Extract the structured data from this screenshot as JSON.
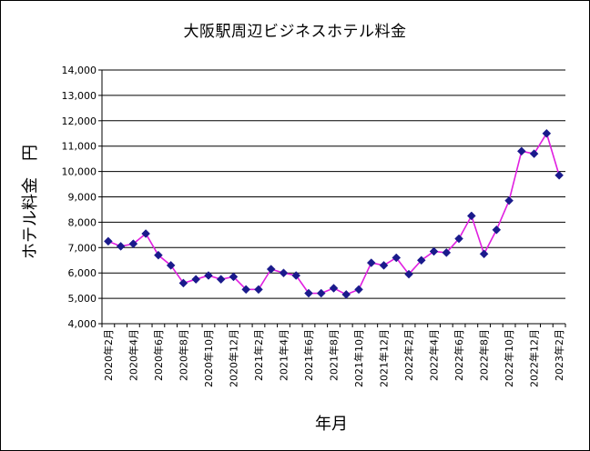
{
  "chart_data": {
    "type": "line",
    "title": "大阪駅周辺ビジネスホテル料金",
    "xlabel": "年月",
    "ylabel": "ホテル料金　円",
    "ylim": [
      4000,
      14000
    ],
    "ytick_step": 1000,
    "yticks": [
      "4,000",
      "5,000",
      "6,000",
      "7,000",
      "8,000",
      "9,000",
      "10,000",
      "11,000",
      "12,000",
      "13,000",
      "14,000"
    ],
    "xtick_labels": [
      "2020年2月",
      "2020年4月",
      "2020年6月",
      "2020年8月",
      "2020年10月",
      "2020年12月",
      "2021年2月",
      "2021年4月",
      "2021年6月",
      "2021年8月",
      "2021年10月",
      "2021年12月",
      "2022年2月",
      "2022年4月",
      "2022年6月",
      "2022年8月",
      "2022年10月",
      "2022年12月",
      "2023年2月"
    ],
    "grid": true,
    "series": [
      {
        "name": "ホテル料金",
        "line_color": "#e020e0",
        "marker_color": "#1a1a8c",
        "x": [
          "2020-02",
          "2020-03",
          "2020-04",
          "2020-05",
          "2020-06",
          "2020-07",
          "2020-08",
          "2020-09",
          "2020-10",
          "2020-11",
          "2020-12",
          "2021-01",
          "2021-02",
          "2021-03",
          "2021-04",
          "2021-05",
          "2021-06",
          "2021-07",
          "2021-08",
          "2021-09",
          "2021-10",
          "2021-11",
          "2021-12",
          "2022-01",
          "2022-02",
          "2022-03",
          "2022-04",
          "2022-05",
          "2022-06",
          "2022-07",
          "2022-08",
          "2022-09",
          "2022-10",
          "2022-11",
          "2022-12",
          "2023-01",
          "2023-02"
        ],
        "values": [
          7250,
          7050,
          7150,
          7550,
          6700,
          6300,
          5600,
          5750,
          5900,
          5750,
          5850,
          5350,
          5350,
          6150,
          6000,
          5900,
          5200,
          5200,
          5400,
          5150,
          5350,
          6400,
          6300,
          6600,
          5950,
          6500,
          6850,
          6800,
          7350,
          8250,
          6750,
          7700,
          8850,
          10800,
          10700,
          11500,
          9850
        ]
      }
    ]
  }
}
